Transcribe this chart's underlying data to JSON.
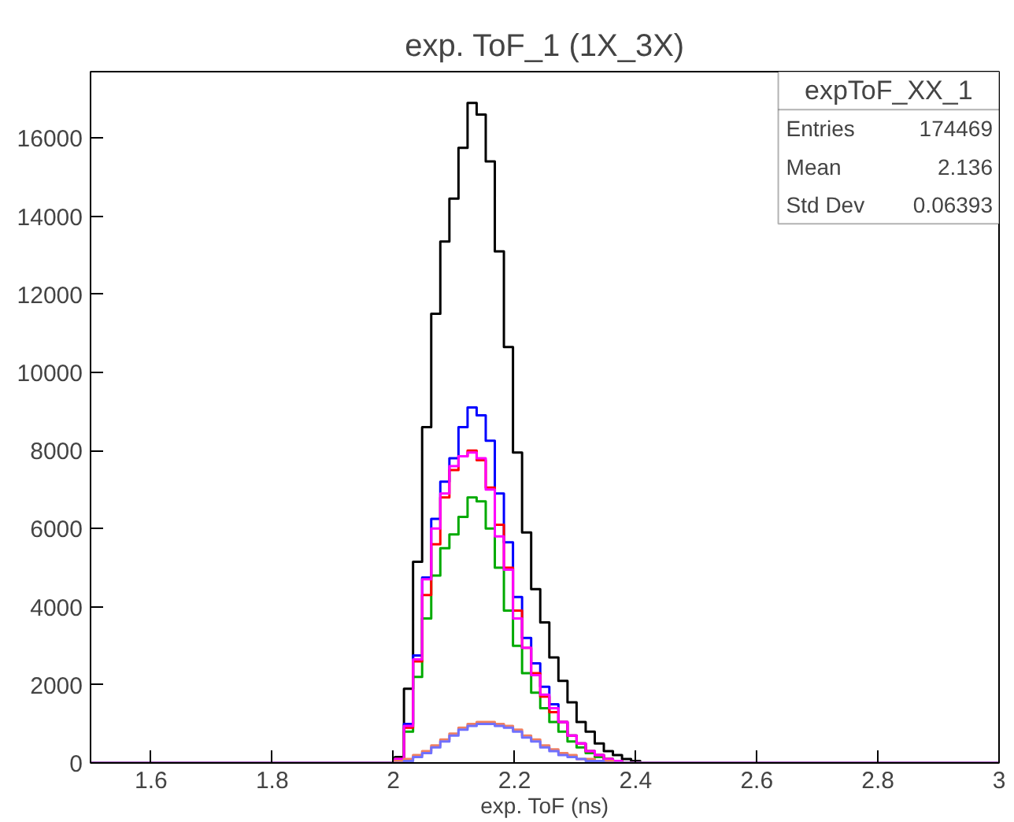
{
  "chart_data": {
    "type": "histogram",
    "title": "exp. ToF_1 (1X_3X)",
    "xlabel": "exp. ToF (ns)",
    "bins": [
      1.5,
      2.0025,
      2.0175,
      2.0325,
      2.0475,
      2.0625,
      2.0775,
      2.0925,
      2.1075,
      2.1225,
      2.1375,
      2.1525,
      2.1675,
      2.1825,
      2.1975,
      2.2125,
      2.2275,
      2.2425,
      2.2575,
      2.2725,
      2.2875,
      2.3025,
      2.3175,
      2.3325,
      2.3475,
      2.3625,
      2.3775,
      2.3925,
      2.4075,
      2.4225,
      3
    ],
    "series": [
      {
        "color": "#000000",
        "values": [
          0,
          150,
          1900,
          5150,
          8600,
          11500,
          13350,
          14450,
          15750,
          16900,
          16600,
          15400,
          13100,
          10650,
          7950,
          5900,
          4450,
          3600,
          2700,
          2100,
          1550,
          1050,
          800,
          500,
          300,
          200,
          100,
          50,
          0,
          0
        ]
      },
      {
        "color": "#0000ff",
        "values": [
          0,
          100,
          1000,
          2750,
          4750,
          6250,
          7200,
          7800,
          8600,
          9100,
          8900,
          8250,
          6900,
          5650,
          4250,
          3200,
          2550,
          1950,
          1500,
          1050,
          700,
          500,
          300,
          200,
          100,
          50,
          0,
          0,
          0,
          0
        ]
      },
      {
        "color": "#00aa00",
        "values": [
          0,
          100,
          800,
          2200,
          3700,
          4800,
          5500,
          5850,
          6300,
          6800,
          6700,
          6000,
          5000,
          3900,
          3000,
          2300,
          1800,
          1400,
          1050,
          800,
          550,
          400,
          250,
          150,
          100,
          50,
          0,
          0,
          0,
          0
        ]
      },
      {
        "color": "#ff0000",
        "values": [
          0,
          100,
          900,
          2600,
          4300,
          5600,
          6800,
          7500,
          7850,
          8000,
          7750,
          7050,
          6100,
          5000,
          3900,
          2950,
          2300,
          1700,
          1300,
          1050,
          700,
          500,
          300,
          200,
          100,
          50,
          0,
          0,
          0,
          0
        ]
      },
      {
        "color": "#ff00ff",
        "values": [
          0,
          100,
          950,
          2650,
          4700,
          6000,
          6900,
          7600,
          7850,
          7950,
          7800,
          7000,
          5800,
          4950,
          3700,
          2950,
          2250,
          1750,
          1400,
          1050,
          700,
          500,
          300,
          200,
          100,
          50,
          0,
          0,
          0,
          0
        ]
      },
      {
        "color": "#f08060",
        "values": [
          0,
          50,
          100,
          200,
          300,
          450,
          600,
          750,
          900,
          1000,
          1050,
          1050,
          1000,
          950,
          850,
          700,
          600,
          450,
          350,
          250,
          200,
          100,
          100,
          50,
          50,
          0,
          0,
          0,
          0,
          0
        ]
      },
      {
        "color": "#7070ff",
        "values": [
          0,
          0,
          50,
          150,
          250,
          400,
          550,
          700,
          850,
          950,
          1000,
          1000,
          950,
          900,
          800,
          650,
          550,
          400,
          300,
          200,
          150,
          100,
          50,
          50,
          0,
          0,
          0,
          0,
          0,
          0
        ]
      }
    ],
    "xlim": [
      1.5,
      3
    ],
    "ylim": [
      0,
      17700
    ],
    "xticks": [
      1.6,
      1.8,
      {
        "value": 2,
        "label": "2"
      },
      2.2,
      2.4,
      2.6,
      2.8,
      {
        "value": 3,
        "label": "3"
      }
    ],
    "yticks": [
      0,
      2000,
      4000,
      6000,
      8000,
      10000,
      12000,
      14000,
      16000
    ],
    "grid": false,
    "annotations": [
      "expToF_XX_1",
      "Entries",
      "174469",
      "Mean",
      "2.136",
      "Std Dev",
      "0.06393"
    ]
  }
}
